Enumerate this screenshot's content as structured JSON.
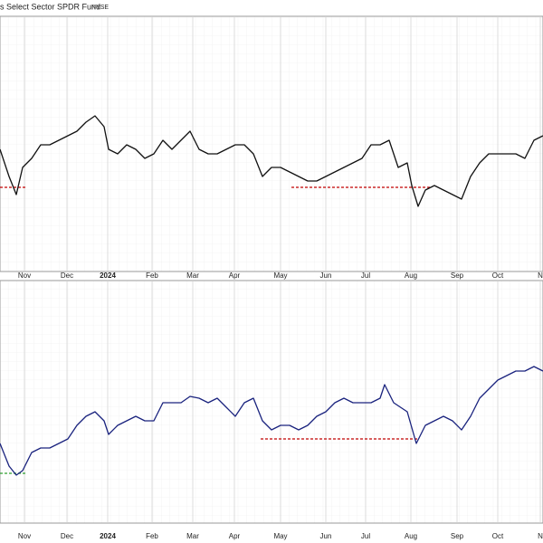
{
  "chart_data": [
    {
      "type": "line",
      "title": "s Select Sector SPDR Fund",
      "exchange": "NYSE",
      "x": [
        0,
        10,
        18,
        25,
        35,
        45,
        55,
        65,
        75,
        85,
        95,
        105,
        115,
        120,
        130,
        140,
        150,
        160,
        170,
        180,
        190,
        200,
        210,
        220,
        230,
        240,
        250,
        260,
        270,
        280,
        290,
        300,
        310,
        320,
        330,
        340,
        350,
        360,
        370,
        380,
        390,
        400,
        410,
        420,
        430,
        440,
        450,
        455,
        462,
        470,
        480,
        490,
        500,
        510,
        520,
        530,
        540,
        550,
        560,
        570,
        580,
        590,
        600
      ],
      "series": [
        {
          "color": "#111111",
          "values": [
            135,
            105,
            85,
            115,
            125,
            140,
            140,
            145,
            150,
            155,
            165,
            172,
            160,
            135,
            130,
            140,
            135,
            125,
            130,
            145,
            135,
            145,
            155,
            135,
            130,
            130,
            135,
            140,
            140,
            130,
            105,
            115,
            115,
            110,
            105,
            100,
            100,
            105,
            110,
            115,
            120,
            125,
            140,
            140,
            145,
            115,
            120,
            95,
            72,
            90,
            95,
            90,
            85,
            80,
            105,
            120,
            130,
            130,
            130,
            130,
            125,
            145,
            150
          ]
        }
      ],
      "xlim": [
        0,
        600
      ],
      "ylim": [
        0,
        282
      ],
      "xticks": [
        {
          "value": 27,
          "label": "Nov"
        },
        {
          "value": 74,
          "label": "Dec"
        },
        {
          "value": 119,
          "label": "2024"
        },
        {
          "value": 168,
          "label": "Feb"
        },
        {
          "value": 213,
          "label": "Mar"
        },
        {
          "value": 259,
          "label": "Apr"
        },
        {
          "value": 310,
          "label": "May"
        },
        {
          "value": 360,
          "label": "Jun"
        },
        {
          "value": 404,
          "label": "Jul"
        },
        {
          "value": 454,
          "label": "Aug"
        },
        {
          "value": 505,
          "label": "Sep"
        },
        {
          "value": 550,
          "label": "Oct"
        },
        {
          "value": 597,
          "label": "N"
        }
      ],
      "levels": [
        {
          "value": 93,
          "x": [
            0,
            30
          ],
          "color": "#c00000"
        },
        {
          "value": 93,
          "x": [
            322,
            475
          ],
          "color": "#c00000"
        }
      ],
      "grid": true
    },
    {
      "type": "line",
      "x": [
        0,
        10,
        18,
        25,
        35,
        45,
        55,
        65,
        75,
        85,
        95,
        105,
        115,
        120,
        130,
        140,
        150,
        160,
        170,
        180,
        190,
        200,
        210,
        220,
        230,
        240,
        250,
        260,
        270,
        280,
        290,
        300,
        310,
        320,
        330,
        340,
        350,
        360,
        370,
        380,
        390,
        400,
        410,
        420,
        425,
        435,
        450,
        460,
        470,
        480,
        490,
        500,
        510,
        520,
        530,
        540,
        550,
        560,
        570,
        580,
        590,
        600
      ],
      "series": [
        {
          "color": "#1a237e",
          "values": [
            88,
            63,
            53,
            58,
            78,
            83,
            83,
            88,
            93,
            108,
            118,
            123,
            113,
            98,
            108,
            113,
            118,
            113,
            113,
            133,
            133,
            133,
            140,
            138,
            133,
            138,
            128,
            118,
            133,
            138,
            113,
            103,
            108,
            108,
            103,
            108,
            118,
            123,
            133,
            138,
            133,
            133,
            133,
            138,
            153,
            133,
            123,
            88,
            108,
            113,
            118,
            113,
            103,
            118,
            138,
            148,
            158,
            163,
            168,
            168,
            173,
            168
          ]
        }
      ],
      "xlim": [
        0,
        600
      ],
      "ylim": [
        0,
        268
      ],
      "xticks": [
        {
          "value": 27,
          "label": "Nov"
        },
        {
          "value": 74,
          "label": "Dec"
        },
        {
          "value": 119,
          "label": "2024"
        },
        {
          "value": 168,
          "label": "Feb"
        },
        {
          "value": 213,
          "label": "Mar"
        },
        {
          "value": 259,
          "label": "Apr"
        },
        {
          "value": 310,
          "label": "May"
        },
        {
          "value": 360,
          "label": "Jun"
        },
        {
          "value": 404,
          "label": "Jul"
        },
        {
          "value": 454,
          "label": "Aug"
        },
        {
          "value": 505,
          "label": "Sep"
        },
        {
          "value": 550,
          "label": "Oct"
        },
        {
          "value": 597,
          "label": "N"
        }
      ],
      "levels": [
        {
          "value": 55,
          "x": [
            0,
            30
          ],
          "color": "#2e9e2e"
        },
        {
          "value": 93,
          "x": [
            288,
            462
          ],
          "color": "#c00000"
        }
      ],
      "grid": true
    }
  ]
}
